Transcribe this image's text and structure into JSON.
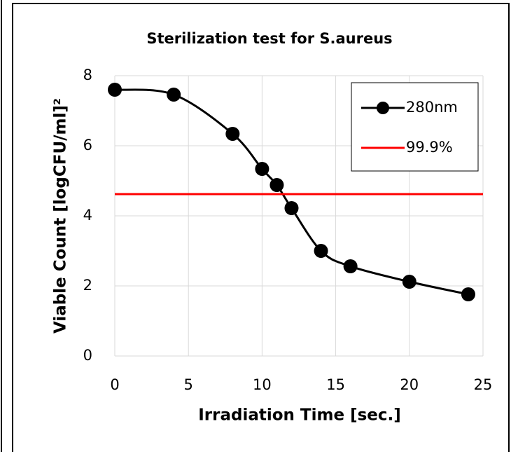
{
  "chart_data": {
    "type": "line",
    "title": "Sterilization test for S.aureus",
    "x_label": "Irradiation Time [sec.]",
    "y_label": "Viable Count [logCFU/ml]²",
    "series": [
      {
        "name": "280nm",
        "color": "#000000",
        "smooth": true,
        "markers": true,
        "x": [
          0,
          4,
          8,
          10,
          11,
          12,
          14,
          16,
          20,
          24
        ],
        "values": [
          7.6,
          7.46,
          6.34,
          5.34,
          4.88,
          4.22,
          3.0,
          2.56,
          2.12,
          1.76
        ]
      },
      {
        "name": "99.9%",
        "color": "#ff0000",
        "smooth": false,
        "markers": false,
        "x": [
          0,
          25
        ],
        "values": [
          4.62,
          4.62
        ]
      }
    ],
    "xlim": [
      0,
      25
    ],
    "xticks": [
      0,
      5,
      10,
      15,
      20,
      25
    ],
    "ylim": [
      0,
      8
    ],
    "yticks": [
      0,
      2,
      4,
      6,
      8
    ],
    "grid": true,
    "legend": "upper right"
  }
}
